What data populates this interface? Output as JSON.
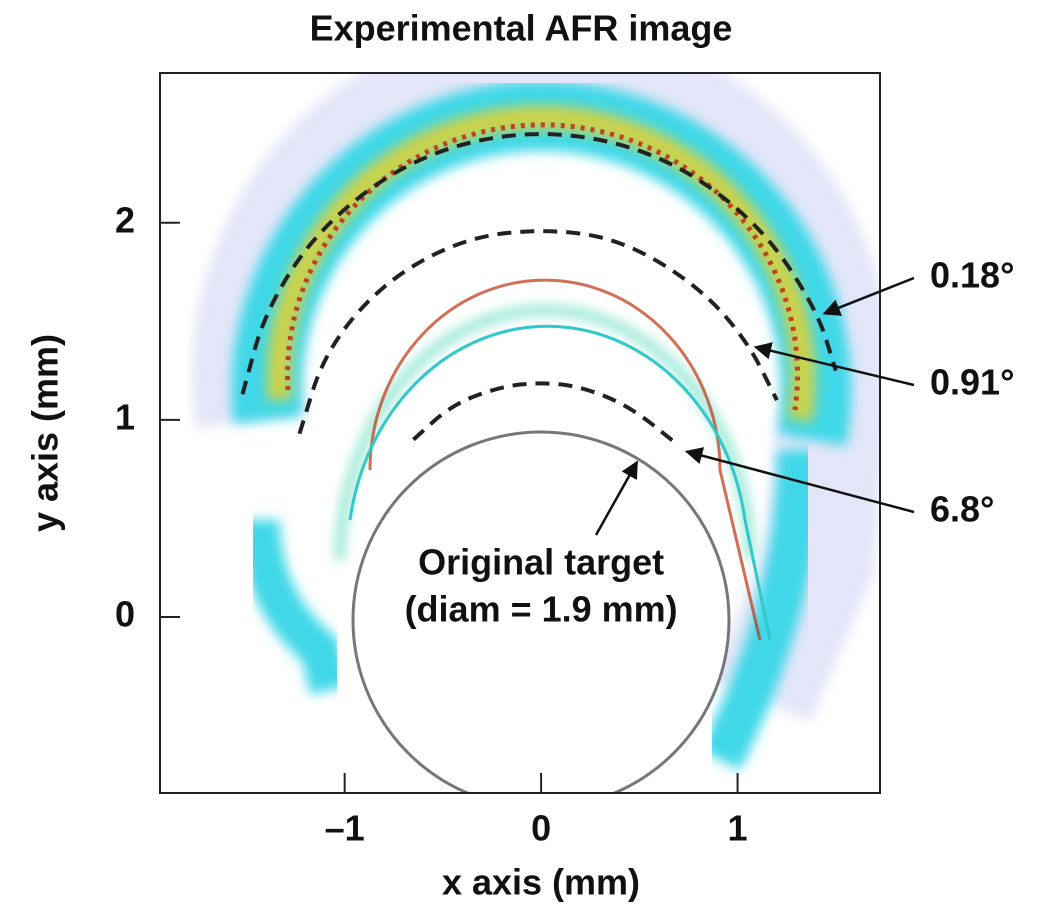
{
  "chart_data": {
    "type": "image",
    "title": "Experimental AFR image",
    "x_label": "x axis (mm)",
    "y_label": "y axis (mm)",
    "xlim": [
      -1.94,
      1.725
    ],
    "ylim": [
      -0.893,
      2.76
    ],
    "xticks": [
      {
        "value": -1,
        "label": "–1"
      },
      0,
      1
    ],
    "yticks": [
      0,
      1,
      2
    ],
    "series": [
      {
        "name": "0.18°",
        "color": "#222222",
        "x": [
          -1.52,
          -1.4,
          -1.1,
          -0.6,
          0,
          0.6,
          1.1,
          1.4,
          1.5
        ],
        "y": [
          1.13,
          1.57,
          2.01,
          2.36,
          2.48,
          2.36,
          2.01,
          1.57,
          1.25
        ]
      },
      {
        "name": "0.91°",
        "color": "#222222",
        "x": [
          -1.23,
          -1.1,
          -0.8,
          -0.4,
          0,
          0.4,
          0.8,
          1.05,
          1.2
        ],
        "y": [
          0.93,
          1.35,
          1.7,
          1.92,
          1.97,
          1.92,
          1.68,
          1.4,
          1.1
        ]
      },
      {
        "name": "6.8°",
        "color": "#222222",
        "x": [
          -0.65,
          -0.45,
          -0.2,
          0,
          0.2,
          0.45,
          0.7
        ],
        "y": [
          0.9,
          1.08,
          1.17,
          1.19,
          1.17,
          1.07,
          0.87
        ]
      }
    ],
    "target": {
      "label": [
        "Original target",
        "(diam = 1.9 mm)"
      ],
      "x": 0,
      "y": 0,
      "diameter": 1.9
    }
  }
}
